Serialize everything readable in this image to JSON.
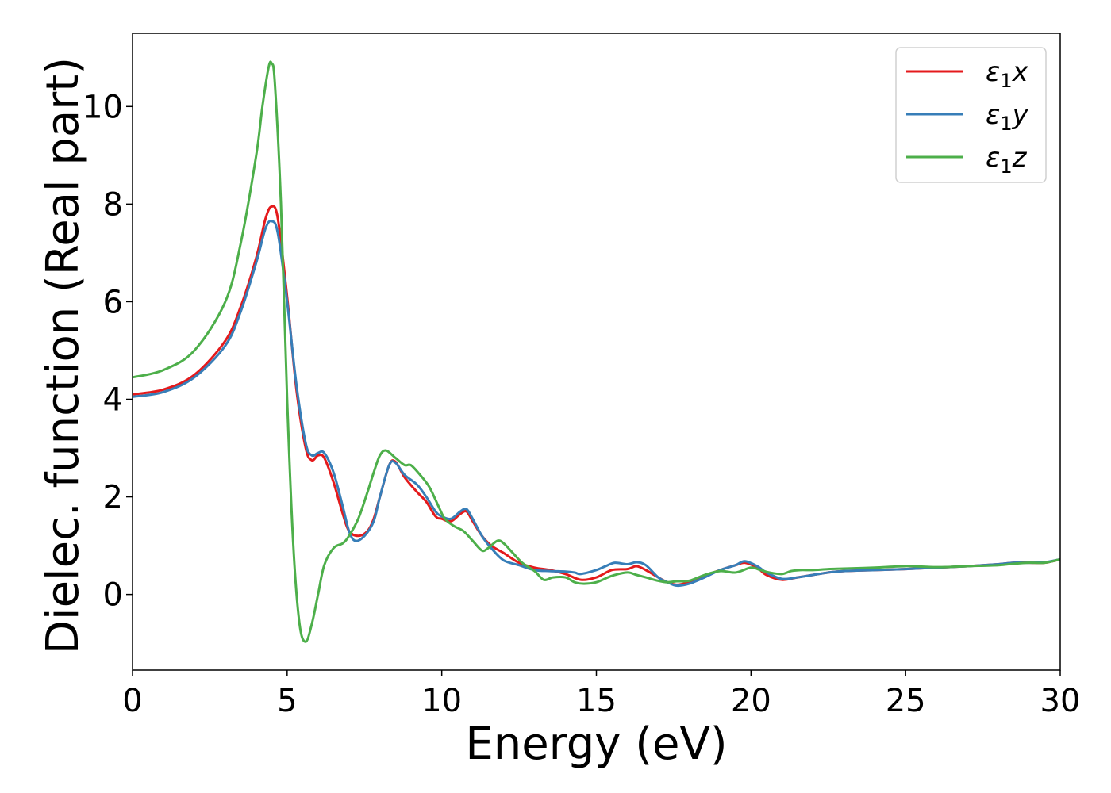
{
  "chart_data": {
    "type": "line",
    "xlabel": "Energy (eV)",
    "ylabel": "Dielec. function (Real part)",
    "xlim": [
      0,
      30
    ],
    "ylim": [
      -1.55,
      11.5
    ],
    "xticks": [
      0,
      5,
      10,
      15,
      20,
      25,
      30
    ],
    "yticks": [
      0,
      2,
      4,
      6,
      8,
      10
    ],
    "grid": false,
    "legend_position": "top-right",
    "series": [
      {
        "name": "ε1x",
        "legend_main": "ε",
        "legend_sub": "1",
        "legend_suffix": "x",
        "color": "#e41a1c",
        "x": [
          0,
          1,
          2,
          3,
          3.5,
          4,
          4.3,
          4.5,
          4.7,
          5,
          5.3,
          5.6,
          5.8,
          6.0,
          6.2,
          6.5,
          6.8,
          7.0,
          7.3,
          7.6,
          7.8,
          8.0,
          8.3,
          8.5,
          8.8,
          9.2,
          9.5,
          9.8,
          10.0,
          10.3,
          10.6,
          10.8,
          11.0,
          11.3,
          11.6,
          12.0,
          12.5,
          13.0,
          13.5,
          14.0,
          14.5,
          15.0,
          15.5,
          16.0,
          16.3,
          16.6,
          17.0,
          17.3,
          17.6,
          18.0,
          18.5,
          19.0,
          19.5,
          19.8,
          20.2,
          20.5,
          21.0,
          21.5,
          22.0,
          22.5,
          23.0,
          24.0,
          25.0,
          26.0,
          27.0,
          28.0,
          28.5,
          29.0,
          29.5,
          30.0
        ],
        "y": [
          4.1,
          4.2,
          4.5,
          5.2,
          5.9,
          6.9,
          7.7,
          7.95,
          7.7,
          6.1,
          4.2,
          3.0,
          2.75,
          2.85,
          2.8,
          2.3,
          1.65,
          1.3,
          1.2,
          1.3,
          1.55,
          2.0,
          2.65,
          2.72,
          2.4,
          2.1,
          1.9,
          1.6,
          1.55,
          1.5,
          1.65,
          1.7,
          1.5,
          1.2,
          1.0,
          0.85,
          0.65,
          0.55,
          0.5,
          0.42,
          0.3,
          0.35,
          0.5,
          0.52,
          0.58,
          0.5,
          0.35,
          0.25,
          0.2,
          0.25,
          0.38,
          0.5,
          0.6,
          0.65,
          0.55,
          0.4,
          0.3,
          0.35,
          0.4,
          0.45,
          0.48,
          0.5,
          0.52,
          0.55,
          0.58,
          0.62,
          0.65,
          0.65,
          0.65,
          0.72
        ]
      },
      {
        "name": "ε1y",
        "legend_main": "ε",
        "legend_sub": "1",
        "legend_suffix": "y",
        "color": "#377eb8",
        "x": [
          0,
          1,
          2,
          3,
          3.5,
          4,
          4.3,
          4.5,
          4.7,
          5,
          5.3,
          5.6,
          5.8,
          6.0,
          6.2,
          6.5,
          6.8,
          7.0,
          7.2,
          7.5,
          7.8,
          8.0,
          8.3,
          8.5,
          8.8,
          9.2,
          9.5,
          9.8,
          10.0,
          10.3,
          10.6,
          10.8,
          11.0,
          11.3,
          11.6,
          12.0,
          12.5,
          13.0,
          13.5,
          14.0,
          14.3,
          14.5,
          15.0,
          15.3,
          15.6,
          16.0,
          16.3,
          16.6,
          17.0,
          17.3,
          17.6,
          18.0,
          18.5,
          19.0,
          19.5,
          19.8,
          20.2,
          20.5,
          21.0,
          21.5,
          22.0,
          22.5,
          23.0,
          24.0,
          25.0,
          26.0,
          27.0,
          28.0,
          28.5,
          29.0,
          29.5,
          30.0
        ],
        "y": [
          4.05,
          4.15,
          4.45,
          5.1,
          5.8,
          6.8,
          7.5,
          7.65,
          7.4,
          6.0,
          4.3,
          3.1,
          2.85,
          2.9,
          2.9,
          2.5,
          1.8,
          1.3,
          1.1,
          1.2,
          1.5,
          2.0,
          2.65,
          2.7,
          2.45,
          2.25,
          2.0,
          1.7,
          1.6,
          1.55,
          1.7,
          1.75,
          1.55,
          1.2,
          0.95,
          0.7,
          0.6,
          0.5,
          0.48,
          0.47,
          0.45,
          0.42,
          0.5,
          0.58,
          0.65,
          0.62,
          0.66,
          0.6,
          0.35,
          0.25,
          0.18,
          0.22,
          0.35,
          0.5,
          0.6,
          0.68,
          0.58,
          0.45,
          0.32,
          0.35,
          0.4,
          0.45,
          0.48,
          0.5,
          0.52,
          0.55,
          0.58,
          0.62,
          0.65,
          0.65,
          0.66,
          0.72
        ]
      },
      {
        "name": "ε1z",
        "legend_main": "ε",
        "legend_sub": "1",
        "legend_suffix": "z",
        "color": "#4daf4a",
        "x": [
          0,
          1,
          2,
          3,
          3.5,
          4,
          4.2,
          4.4,
          4.5,
          4.6,
          4.8,
          5.0,
          5.2,
          5.4,
          5.6,
          5.8,
          6.0,
          6.2,
          6.5,
          6.8,
          7.0,
          7.3,
          7.6,
          7.8,
          8.0,
          8.2,
          8.5,
          8.8,
          9.0,
          9.3,
          9.6,
          9.9,
          10.1,
          10.4,
          10.7,
          11.0,
          11.3,
          11.5,
          11.8,
          12.0,
          12.3,
          12.6,
          13.0,
          13.3,
          13.6,
          14.0,
          14.3,
          14.6,
          15.0,
          15.5,
          16.0,
          16.3,
          16.6,
          17.0,
          17.3,
          17.6,
          18.0,
          18.5,
          19.0,
          19.5,
          20.0,
          20.3,
          20.6,
          21.0,
          21.3,
          21.6,
          22.0,
          22.5,
          23.0,
          24.0,
          25.0,
          26.0,
          27.0,
          28.0,
          28.5,
          29.0,
          29.5,
          30.0
        ],
        "y": [
          4.45,
          4.6,
          5.0,
          6.0,
          7.2,
          9.0,
          10.0,
          10.8,
          10.88,
          10.5,
          8.0,
          4.0,
          1.0,
          -0.6,
          -0.97,
          -0.6,
          0.0,
          0.6,
          0.95,
          1.05,
          1.2,
          1.55,
          2.1,
          2.5,
          2.85,
          2.95,
          2.8,
          2.65,
          2.65,
          2.45,
          2.2,
          1.8,
          1.55,
          1.4,
          1.3,
          1.1,
          0.9,
          0.95,
          1.1,
          1.05,
          0.85,
          0.65,
          0.48,
          0.3,
          0.35,
          0.35,
          0.25,
          0.22,
          0.25,
          0.38,
          0.45,
          0.4,
          0.35,
          0.28,
          0.25,
          0.27,
          0.28,
          0.4,
          0.48,
          0.45,
          0.55,
          0.5,
          0.45,
          0.42,
          0.48,
          0.5,
          0.5,
          0.52,
          0.53,
          0.55,
          0.58,
          0.56,
          0.58,
          0.6,
          0.63,
          0.65,
          0.65,
          0.72
        ]
      }
    ]
  }
}
